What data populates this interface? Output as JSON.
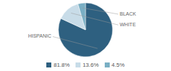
{
  "chart_data": {
    "type": "pie",
    "categories": [
      "HISPANIC",
      "WHITE",
      "BLACK"
    ],
    "values": [
      81.8,
      13.6,
      4.5
    ],
    "value_labels": [
      "81.8%",
      "13.6%",
      "4.5%"
    ],
    "colors": [
      "#2e6080",
      "#c8dce8",
      "#7aafc4"
    ],
    "legend": "bottom"
  }
}
